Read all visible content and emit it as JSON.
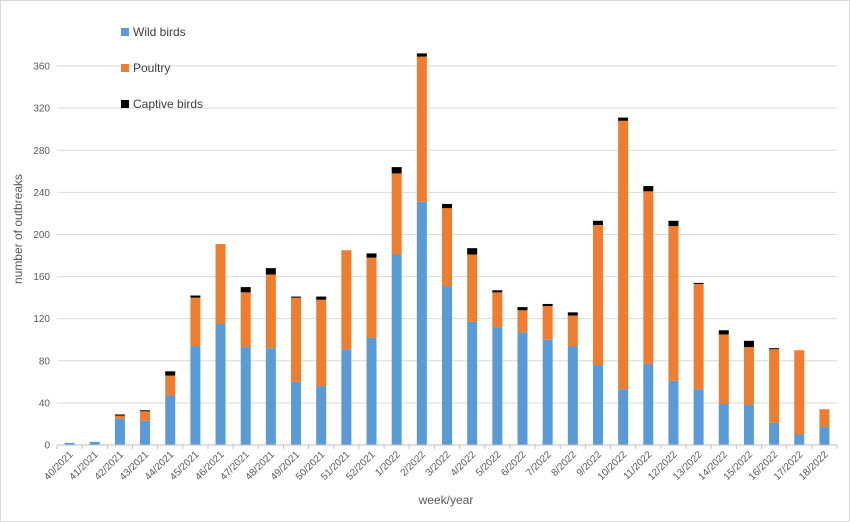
{
  "chart_data": {
    "type": "bar",
    "stacked": true,
    "title": "",
    "xlabel": "week/year",
    "ylabel": "number of outbreaks",
    "ylim": [
      0,
      380
    ],
    "yticks": [
      0,
      40,
      80,
      120,
      160,
      200,
      240,
      280,
      320,
      360
    ],
    "grid": true,
    "legend_position": "top-left",
    "categories": [
      "40/2021",
      "41/2021",
      "42/2021",
      "43/2021",
      "44/2021",
      "45/2021",
      "46/2021",
      "47/2021",
      "48/2021",
      "49/2021",
      "50/2021",
      "51/2021",
      "52/2021",
      "1/2022",
      "2/2022",
      "3/2022",
      "4/2022",
      "5/2022",
      "6/2022",
      "7/2022",
      "8/2022",
      "9/2022",
      "10/2022",
      "11/2022",
      "12/2022",
      "13/2022",
      "14/2022",
      "15/2022",
      "16/2022",
      "17/2022",
      "18/2022"
    ],
    "series": [
      {
        "name": "Wild birds",
        "color": "#5b9bd5",
        "values": [
          2,
          3,
          25,
          23,
          47,
          94,
          115,
          93,
          92,
          60,
          56,
          91,
          102,
          181,
          231,
          151,
          117,
          112,
          107,
          100,
          94,
          76,
          53,
          77,
          61,
          53,
          39,
          38,
          21,
          10,
          17
        ]
      },
      {
        "name": "Poultry",
        "color": "#ed7d31",
        "values": [
          0,
          0,
          3,
          9,
          19,
          46,
          76,
          52,
          70,
          80,
          82,
          94,
          76,
          77,
          138,
          74,
          64,
          33,
          21,
          32,
          29,
          133,
          255,
          164,
          147,
          100,
          66,
          55,
          70,
          80,
          17
        ]
      },
      {
        "name": "Captive birds",
        "color": "#000000",
        "values": [
          0,
          0,
          1,
          1,
          4,
          2,
          0,
          5,
          6,
          1,
          3,
          0,
          4,
          6,
          3,
          4,
          6,
          2,
          3,
          2,
          3,
          4,
          3,
          5,
          5,
          1,
          4,
          6,
          1,
          0,
          0
        ]
      }
    ]
  }
}
